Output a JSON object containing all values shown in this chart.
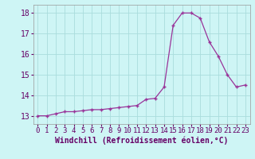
{
  "x": [
    0,
    1,
    2,
    3,
    4,
    5,
    6,
    7,
    8,
    9,
    10,
    11,
    12,
    13,
    14,
    15,
    16,
    17,
    18,
    19,
    20,
    21,
    22,
    23
  ],
  "y": [
    13.0,
    13.0,
    13.1,
    13.2,
    13.2,
    13.25,
    13.3,
    13.3,
    13.35,
    13.4,
    13.45,
    13.5,
    13.8,
    13.85,
    14.4,
    17.4,
    18.0,
    18.0,
    17.75,
    16.6,
    15.9,
    15.0,
    14.4,
    14.5
  ],
  "xlabel": "Windchill (Refroidissement éolien,°C)",
  "ylim": [
    12.6,
    18.4
  ],
  "xlim": [
    -0.5,
    23.5
  ],
  "yticks": [
    13,
    14,
    15,
    16,
    17,
    18
  ],
  "xticks": [
    0,
    1,
    2,
    3,
    4,
    5,
    6,
    7,
    8,
    9,
    10,
    11,
    12,
    13,
    14,
    15,
    16,
    17,
    18,
    19,
    20,
    21,
    22,
    23
  ],
  "line_color": "#993399",
  "marker": "+",
  "bg_color": "#cef5f5",
  "grid_color": "#aadddd",
  "xlabel_color": "#660066",
  "tick_color": "#660066",
  "tick_fontsize": 6.5,
  "xlabel_fontsize": 7.0
}
